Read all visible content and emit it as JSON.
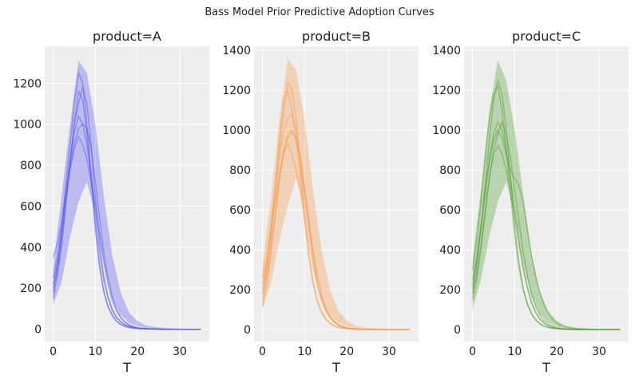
{
  "figure": {
    "suptitle": "Bass Model Prior Predictive Adoption Curves"
  },
  "chart_data": [
    {
      "type": "line",
      "title": "product=A",
      "xlabel": "T",
      "ylabel": "",
      "xlim": [
        -2,
        37
      ],
      "ylim": [
        -60,
        1380
      ],
      "xticks": [
        0,
        10,
        20,
        30
      ],
      "yticks": [
        0,
        200,
        400,
        600,
        800,
        1000,
        1200
      ],
      "color": "#5b5bf0",
      "grid": true,
      "band": {
        "x": [
          0,
          2,
          4,
          6,
          8,
          10,
          12,
          14,
          16,
          18,
          20,
          22,
          25,
          30,
          35
        ],
        "lower": [
          120,
          230,
          450,
          620,
          720,
          560,
          320,
          150,
          70,
          30,
          15,
          6,
          2,
          0,
          0
        ],
        "upper": [
          300,
          650,
          1000,
          1310,
          1250,
          1000,
          650,
          360,
          180,
          80,
          40,
          18,
          8,
          3,
          1
        ]
      },
      "series": [
        {
          "values": [
            200,
            280,
            430,
            620,
            820,
            1000,
            1160,
            1120,
            950,
            720,
            480,
            300,
            180,
            110,
            70,
            40,
            25,
            15,
            8,
            5,
            3,
            2,
            1,
            1,
            0,
            0,
            0,
            0,
            0,
            0,
            0,
            0,
            0,
            0,
            0,
            0
          ]
        },
        {
          "values": [
            150,
            260,
            400,
            600,
            800,
            960,
            1040,
            1000,
            900,
            760,
            560,
            380,
            240,
            150,
            90,
            55,
            35,
            20,
            12,
            7,
            4,
            3,
            2,
            1,
            1,
            0,
            0,
            0,
            0,
            0,
            0,
            0,
            0,
            0,
            0,
            0
          ]
        },
        {
          "values": [
            350,
            420,
            520,
            680,
            820,
            1000,
            1100,
            1180,
            1100,
            900,
            640,
            420,
            260,
            160,
            100,
            60,
            38,
            24,
            15,
            10,
            6,
            4,
            3,
            2,
            1,
            1,
            0,
            0,
            0,
            0,
            0,
            0,
            0,
            0,
            0,
            0
          ]
        },
        {
          "values": [
            180,
            300,
            480,
            700,
            900,
            1100,
            1250,
            1200,
            1000,
            760,
            520,
            320,
            190,
            110,
            65,
            38,
            22,
            13,
            8,
            5,
            3,
            2,
            1,
            1,
            0,
            0,
            0,
            0,
            0,
            0,
            0,
            0,
            0,
            0,
            0,
            0
          ]
        },
        {
          "values": [
            220,
            320,
            460,
            640,
            780,
            900,
            980,
            1000,
            980,
            880,
            720,
            540,
            380,
            250,
            160,
            100,
            60,
            36,
            22,
            13,
            8,
            5,
            3,
            2,
            1,
            1,
            0,
            0,
            0,
            0,
            0,
            0,
            0,
            0,
            0,
            0
          ]
        },
        {
          "values": [
            250,
            350,
            500,
            650,
            780,
            880,
            940,
            900,
            830,
            720,
            600,
            460,
            330,
            220,
            140,
            90,
            55,
            34,
            20,
            12,
            7,
            4,
            3,
            2,
            1,
            1,
            0,
            0,
            0,
            0,
            0,
            0,
            0,
            0,
            0,
            0
          ]
        }
      ]
    },
    {
      "type": "line",
      "title": "product=B",
      "xlabel": "T",
      "ylabel": "",
      "xlim": [
        -2,
        37
      ],
      "ylim": [
        -60,
        1420
      ],
      "xticks": [
        0,
        10,
        20,
        30
      ],
      "yticks": [
        0,
        200,
        400,
        600,
        800,
        1000,
        1200,
        1400
      ],
      "color": "#f59a4e",
      "grid": true,
      "band": {
        "x": [
          0,
          2,
          4,
          6,
          8,
          10,
          12,
          14,
          16,
          18,
          20,
          22,
          25,
          30,
          35
        ],
        "lower": [
          100,
          230,
          450,
          620,
          760,
          600,
          350,
          160,
          75,
          35,
          15,
          6,
          2,
          0,
          0
        ],
        "upper": [
          330,
          650,
          1050,
          1360,
          1300,
          1050,
          700,
          400,
          200,
          95,
          45,
          20,
          8,
          3,
          1
        ]
      },
      "series": [
        {
          "values": [
            200,
            300,
            460,
            700,
            950,
            1150,
            1200,
            1100,
            950,
            760,
            540,
            360,
            230,
            140,
            85,
            50,
            30,
            18,
            10,
            6,
            4,
            2,
            1,
            1,
            0,
            0,
            0,
            0,
            0,
            0,
            0,
            0,
            0,
            0,
            0,
            0
          ]
        },
        {
          "values": [
            150,
            250,
            400,
            580,
            760,
            900,
            960,
            990,
            950,
            860,
            720,
            560,
            400,
            270,
            170,
            105,
            65,
            40,
            24,
            14,
            8,
            5,
            3,
            2,
            1,
            1,
            0,
            0,
            0,
            0,
            0,
            0,
            0,
            0,
            0,
            0
          ]
        },
        {
          "values": [
            230,
            330,
            480,
            640,
            780,
            880,
            930,
            880,
            800,
            690,
            560,
            440,
            320,
            220,
            145,
            95,
            60,
            37,
            22,
            13,
            8,
            5,
            3,
            2,
            1,
            1,
            0,
            0,
            0,
            0,
            0,
            0,
            0,
            0,
            0,
            0
          ]
        },
        {
          "values": [
            180,
            290,
            470,
            680,
            900,
            1080,
            1240,
            1200,
            1050,
            820,
            580,
            380,
            240,
            150,
            90,
            55,
            33,
            20,
            12,
            7,
            4,
            3,
            2,
            1,
            1,
            0,
            0,
            0,
            0,
            0,
            0,
            0,
            0,
            0,
            0,
            0
          ]
        },
        {
          "values": [
            260,
            360,
            520,
            700,
            860,
            990,
            1060,
            1080,
            1000,
            860,
            680,
            500,
            350,
            230,
            150,
            95,
            60,
            37,
            22,
            13,
            8,
            5,
            3,
            2,
            1,
            1,
            0,
            0,
            0,
            0,
            0,
            0,
            0,
            0,
            0,
            0
          ]
        },
        {
          "values": [
            120,
            220,
            380,
            560,
            740,
            880,
            980,
            1000,
            960,
            840,
            680,
            520,
            380,
            260,
            170,
            110,
            70,
            44,
            27,
            16,
            10,
            6,
            4,
            2,
            1,
            1,
            0,
            0,
            0,
            0,
            0,
            0,
            0,
            0,
            0,
            0
          ]
        }
      ]
    },
    {
      "type": "line",
      "title": "product=C",
      "xlabel": "T",
      "ylabel": "",
      "xlim": [
        -2,
        37
      ],
      "ylim": [
        -60,
        1420
      ],
      "xticks": [
        0,
        10,
        20,
        30
      ],
      "yticks": [
        0,
        200,
        400,
        600,
        800,
        1000,
        1200,
        1400
      ],
      "color": "#5aa03a",
      "grid": true,
      "band": {
        "x": [
          0,
          2,
          4,
          6,
          8,
          10,
          12,
          14,
          16,
          18,
          20,
          22,
          25,
          30,
          35
        ],
        "lower": [
          100,
          250,
          470,
          640,
          740,
          580,
          330,
          160,
          75,
          35,
          15,
          6,
          2,
          0,
          0
        ],
        "upper": [
          350,
          700,
          1100,
          1350,
          1250,
          1000,
          680,
          380,
          190,
          90,
          42,
          18,
          8,
          3,
          1
        ]
      },
      "series": [
        {
          "values": [
            200,
            320,
            500,
            720,
            950,
            1150,
            1250,
            1180,
            1000,
            760,
            520,
            340,
            210,
            130,
            80,
            48,
            29,
            17,
            10,
            6,
            4,
            2,
            1,
            1,
            0,
            0,
            0,
            0,
            0,
            0,
            0,
            0,
            0,
            0,
            0,
            0
          ]
        },
        {
          "values": [
            250,
            360,
            520,
            700,
            860,
            980,
            1040,
            1000,
            900,
            760,
            600,
            440,
            310,
            210,
            135,
            85,
            52,
            32,
            19,
            11,
            7,
            4,
            2,
            1,
            1,
            0,
            0,
            0,
            0,
            0,
            0,
            0,
            0,
            0,
            0,
            0
          ]
        },
        {
          "values": [
            150,
            250,
            400,
            580,
            760,
            900,
            980,
            1040,
            980,
            860,
            700,
            540,
            390,
            270,
            180,
            115,
            72,
            45,
            28,
            17,
            10,
            6,
            4,
            2,
            1,
            1,
            0,
            0,
            0,
            0,
            0,
            0,
            0,
            0,
            0,
            0
          ]
        },
        {
          "values": [
            220,
            340,
            500,
            680,
            840,
            950,
            1000,
            960,
            880,
            800,
            760,
            720,
            640,
            500,
            370,
            260,
            180,
            120,
            80,
            52,
            34,
            22,
            14,
            9,
            6,
            4,
            3,
            2,
            1,
            1,
            0,
            0,
            0,
            0,
            0,
            0
          ]
        },
        {
          "values": [
            300,
            450,
            640,
            860,
            1060,
            1180,
            1220,
            1100,
            900,
            680,
            470,
            310,
            200,
            125,
            78,
            47,
            28,
            17,
            10,
            6,
            4,
            2,
            1,
            1,
            0,
            0,
            0,
            0,
            0,
            0,
            0,
            0,
            0,
            0,
            0,
            0
          ]
        },
        {
          "values": [
            180,
            280,
            420,
            600,
            760,
            880,
            920,
            880,
            800,
            690,
            560,
            430,
            310,
            210,
            135,
            85,
            52,
            32,
            19,
            11,
            7,
            4,
            2,
            1,
            1,
            0,
            0,
            0,
            0,
            0,
            0,
            0,
            0,
            0,
            0,
            0
          ]
        }
      ]
    }
  ]
}
